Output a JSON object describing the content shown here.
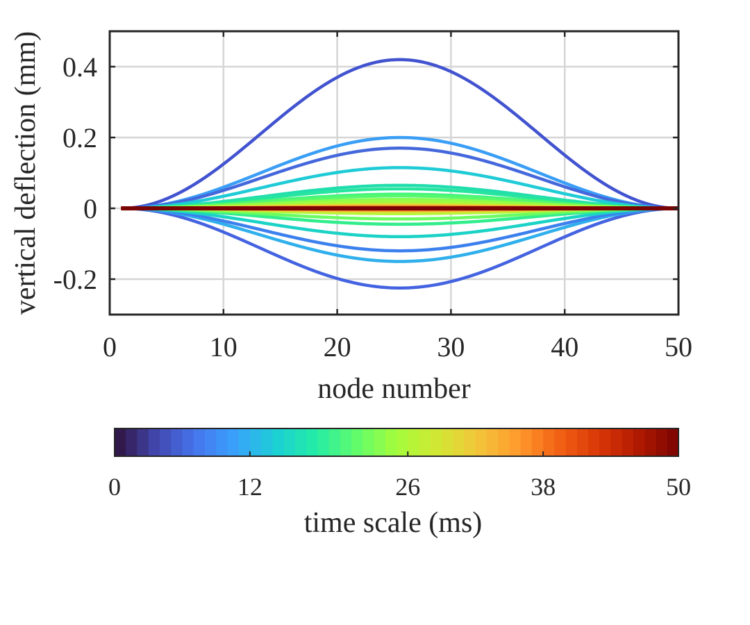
{
  "chart_data": {
    "type": "line",
    "title": "",
    "xlabel": "node number",
    "ylabel": "vertical deflection (mm)",
    "xlim": [
      0,
      50
    ],
    "ylim": [
      -0.3,
      0.5
    ],
    "xticks": [
      0,
      10,
      20,
      30,
      40,
      50
    ],
    "xtick_labels": [
      "0",
      "10",
      "20",
      "30",
      "40",
      "50"
    ],
    "yticks": [
      -0.2,
      0,
      0.2,
      0.4
    ],
    "ytick_labels": [
      "-0.2",
      "0",
      "0.2",
      "0.4"
    ],
    "grid": true,
    "x_range_of_lines": [
      1,
      50
    ],
    "peak_node": 25.5,
    "series_shape": "half-cosine bulge from node 1 to node 50, amplitude at node 25.5",
    "series": [
      {
        "time_ms": 5,
        "peak_value": 0.42,
        "color": "#4253D0"
      },
      {
        "time_ms": 6,
        "peak_value": -0.225,
        "color": "#4463E0"
      },
      {
        "time_ms": 9,
        "peak_value": 0.2,
        "color": "#3A9EF6"
      },
      {
        "time_ms": 7,
        "peak_value": 0.17,
        "color": "#4468DC"
      },
      {
        "time_ms": 10,
        "peak_value": -0.15,
        "color": "#2FAFEC"
      },
      {
        "time_ms": 8,
        "peak_value": -0.12,
        "color": "#3C80EE"
      },
      {
        "time_ms": 13,
        "peak_value": 0.115,
        "color": "#1FCBD6"
      },
      {
        "time_ms": 14,
        "peak_value": -0.08,
        "color": "#1BD2C6"
      },
      {
        "time_ms": 16,
        "peak_value": 0.065,
        "color": "#22DDAE"
      },
      {
        "time_ms": 17,
        "peak_value": 0.055,
        "color": "#26E59E"
      },
      {
        "time_ms": 18,
        "peak_value": -0.045,
        "color": "#31ED8C"
      },
      {
        "time_ms": 19,
        "peak_value": 0.04,
        "color": "#41F37E"
      },
      {
        "time_ms": 20,
        "peak_value": 0.035,
        "color": "#56F86E"
      },
      {
        "time_ms": 21,
        "peak_value": -0.03,
        "color": "#6BFC61"
      },
      {
        "time_ms": 23,
        "peak_value": 0.025,
        "color": "#86FD4F"
      },
      {
        "time_ms": 24,
        "peak_value": 0.02,
        "color": "#9CFC42"
      },
      {
        "time_ms": 25,
        "peak_value": -0.015,
        "color": "#ADF93A"
      },
      {
        "time_ms": 27,
        "peak_value": 0.012,
        "color": "#C3EF36"
      },
      {
        "time_ms": 28,
        "peak_value": -0.01,
        "color": "#D5E335"
      },
      {
        "time_ms": 30,
        "peak_value": 0.008,
        "color": "#E6D136"
      },
      {
        "time_ms": 32,
        "peak_value": -0.006,
        "color": "#F2BB38"
      },
      {
        "time_ms": 34,
        "peak_value": 0.005,
        "color": "#FAA236"
      },
      {
        "time_ms": 36,
        "peak_value": -0.004,
        "color": "#FC8A2D"
      },
      {
        "time_ms": 38,
        "peak_value": 0.003,
        "color": "#F56F21"
      },
      {
        "time_ms": 40,
        "peak_value": -0.002,
        "color": "#E95816"
      },
      {
        "time_ms": 42,
        "peak_value": 0.0015,
        "color": "#D9430D"
      },
      {
        "time_ms": 44,
        "peak_value": -0.001,
        "color": "#C53208"
      },
      {
        "time_ms": 46,
        "peak_value": 0.0008,
        "color": "#AF2404"
      },
      {
        "time_ms": 48,
        "peak_value": -0.0005,
        "color": "#961803"
      },
      {
        "time_ms": 50,
        "peak_value": 0.0,
        "color": "#7A0403"
      }
    ],
    "colorbar": {
      "label": "time scale (ms)",
      "range": [
        0,
        50
      ],
      "ticks": [
        0,
        12,
        26,
        38,
        50
      ],
      "tick_labels": [
        "0",
        "12",
        "26",
        "38",
        "50"
      ],
      "segments": 50,
      "colormap": "turbo",
      "stops": [
        "#30123B",
        "#4145AB",
        "#4675ED",
        "#39A2FC",
        "#1BCFD4",
        "#24ECA6",
        "#61FC6C",
        "#A4FC3B",
        "#D1E834",
        "#F3C63A",
        "#FE9B2D",
        "#F36315",
        "#D93806",
        "#B11901",
        "#7A0402"
      ]
    }
  }
}
